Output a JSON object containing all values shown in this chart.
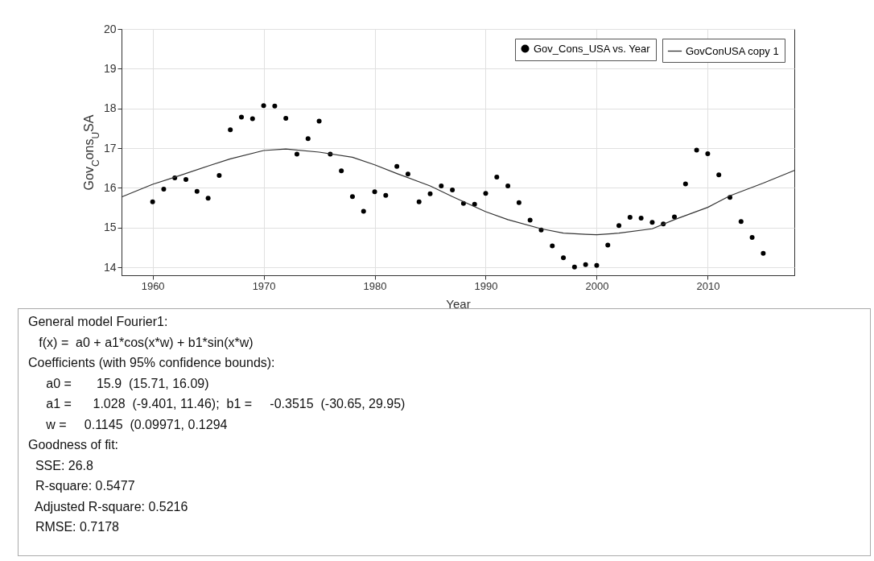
{
  "chart_data": {
    "type": "scatter",
    "xlabel": "Year",
    "ylabel": "Gov$_{C}$ons$_{U}$SA",
    "xlim": [
      1957.2,
      2017.8
    ],
    "ylim": [
      13.8,
      20
    ],
    "xticks": [
      1960,
      1970,
      1980,
      1990,
      2000,
      2010
    ],
    "yticks": [
      14,
      15,
      16,
      17,
      18,
      19,
      20
    ],
    "grid": true,
    "legend": "top right",
    "series": [
      {
        "name": "Gov_Cons_USA vs. Year",
        "type": "scatter",
        "marker": "circle",
        "color": "#000000",
        "x": [
          1960,
          1961,
          1962,
          1963,
          1964,
          1965,
          1966,
          1967,
          1968,
          1969,
          1970,
          1971,
          1972,
          1973,
          1974,
          1975,
          1976,
          1977,
          1978,
          1979,
          1980,
          1981,
          1982,
          1983,
          1984,
          1985,
          1986,
          1987,
          1988,
          1989,
          1990,
          1991,
          1992,
          1993,
          1994,
          1995,
          1996,
          1997,
          1998,
          1999,
          2000,
          2001,
          2002,
          2003,
          2004,
          2005,
          2006,
          2007,
          2008,
          2009,
          2010,
          2011,
          2012,
          2013,
          2014,
          2015
        ],
        "values": [
          15.65,
          15.97,
          16.25,
          16.21,
          15.91,
          15.74,
          16.31,
          17.46,
          17.78,
          17.74,
          18.07,
          18.06,
          17.75,
          16.85,
          17.24,
          17.68,
          16.85,
          16.43,
          15.78,
          15.41,
          15.9,
          15.81,
          16.54,
          16.35,
          15.65,
          15.85,
          16.05,
          15.95,
          15.61,
          15.59,
          15.86,
          16.27,
          16.05,
          15.63,
          15.19,
          14.94,
          14.54,
          14.24,
          14.01,
          14.07,
          14.05,
          14.56,
          15.05,
          15.26,
          15.24,
          15.13,
          15.09,
          15.27,
          16.1,
          16.95,
          16.86,
          16.33,
          15.76,
          15.15,
          14.75,
          14.35
        ]
      },
      {
        "name": "GovConUSA copy 1",
        "type": "line",
        "line_style": "solid",
        "color": "#333333",
        "x": [
          1957.2,
          1960,
          1962,
          1965,
          1967,
          1970,
          1972,
          1975,
          1978,
          1980,
          1982,
          1985,
          1987,
          1990,
          1992,
          1995,
          1997,
          1999,
          2000,
          2002,
          2005,
          2007,
          2010,
          2012,
          2015,
          2017.8
        ],
        "values": [
          15.77,
          16.09,
          16.27,
          16.55,
          16.73,
          16.94,
          16.98,
          16.9,
          16.77,
          16.58,
          16.36,
          16.05,
          15.78,
          15.4,
          15.2,
          14.97,
          14.86,
          14.83,
          14.82,
          14.86,
          14.97,
          15.2,
          15.51,
          15.8,
          16.12,
          16.44
        ]
      }
    ],
    "annotations": [
      "General model Fourier1:",
      "   f(x) =  a0 + a1*cos(x*w) + b1*sin(x*w)",
      "Coefficients (with 95% confidence bounds):",
      "     a0 =       15.9  (15.71, 16.09)",
      "     a1 =      1.028  (-9.401, 11.46);  b1 =     -0.3515  (-30.65, 29.95)",
      "     w =     0.1145  (0.09971, 0.1294",
      "Goodness of fit:",
      "  SSE: 26.8",
      "  R-square: 0.5477",
      "  Adjusted R-square: 0.5216",
      "  RMSE: 0.7178"
    ]
  }
}
